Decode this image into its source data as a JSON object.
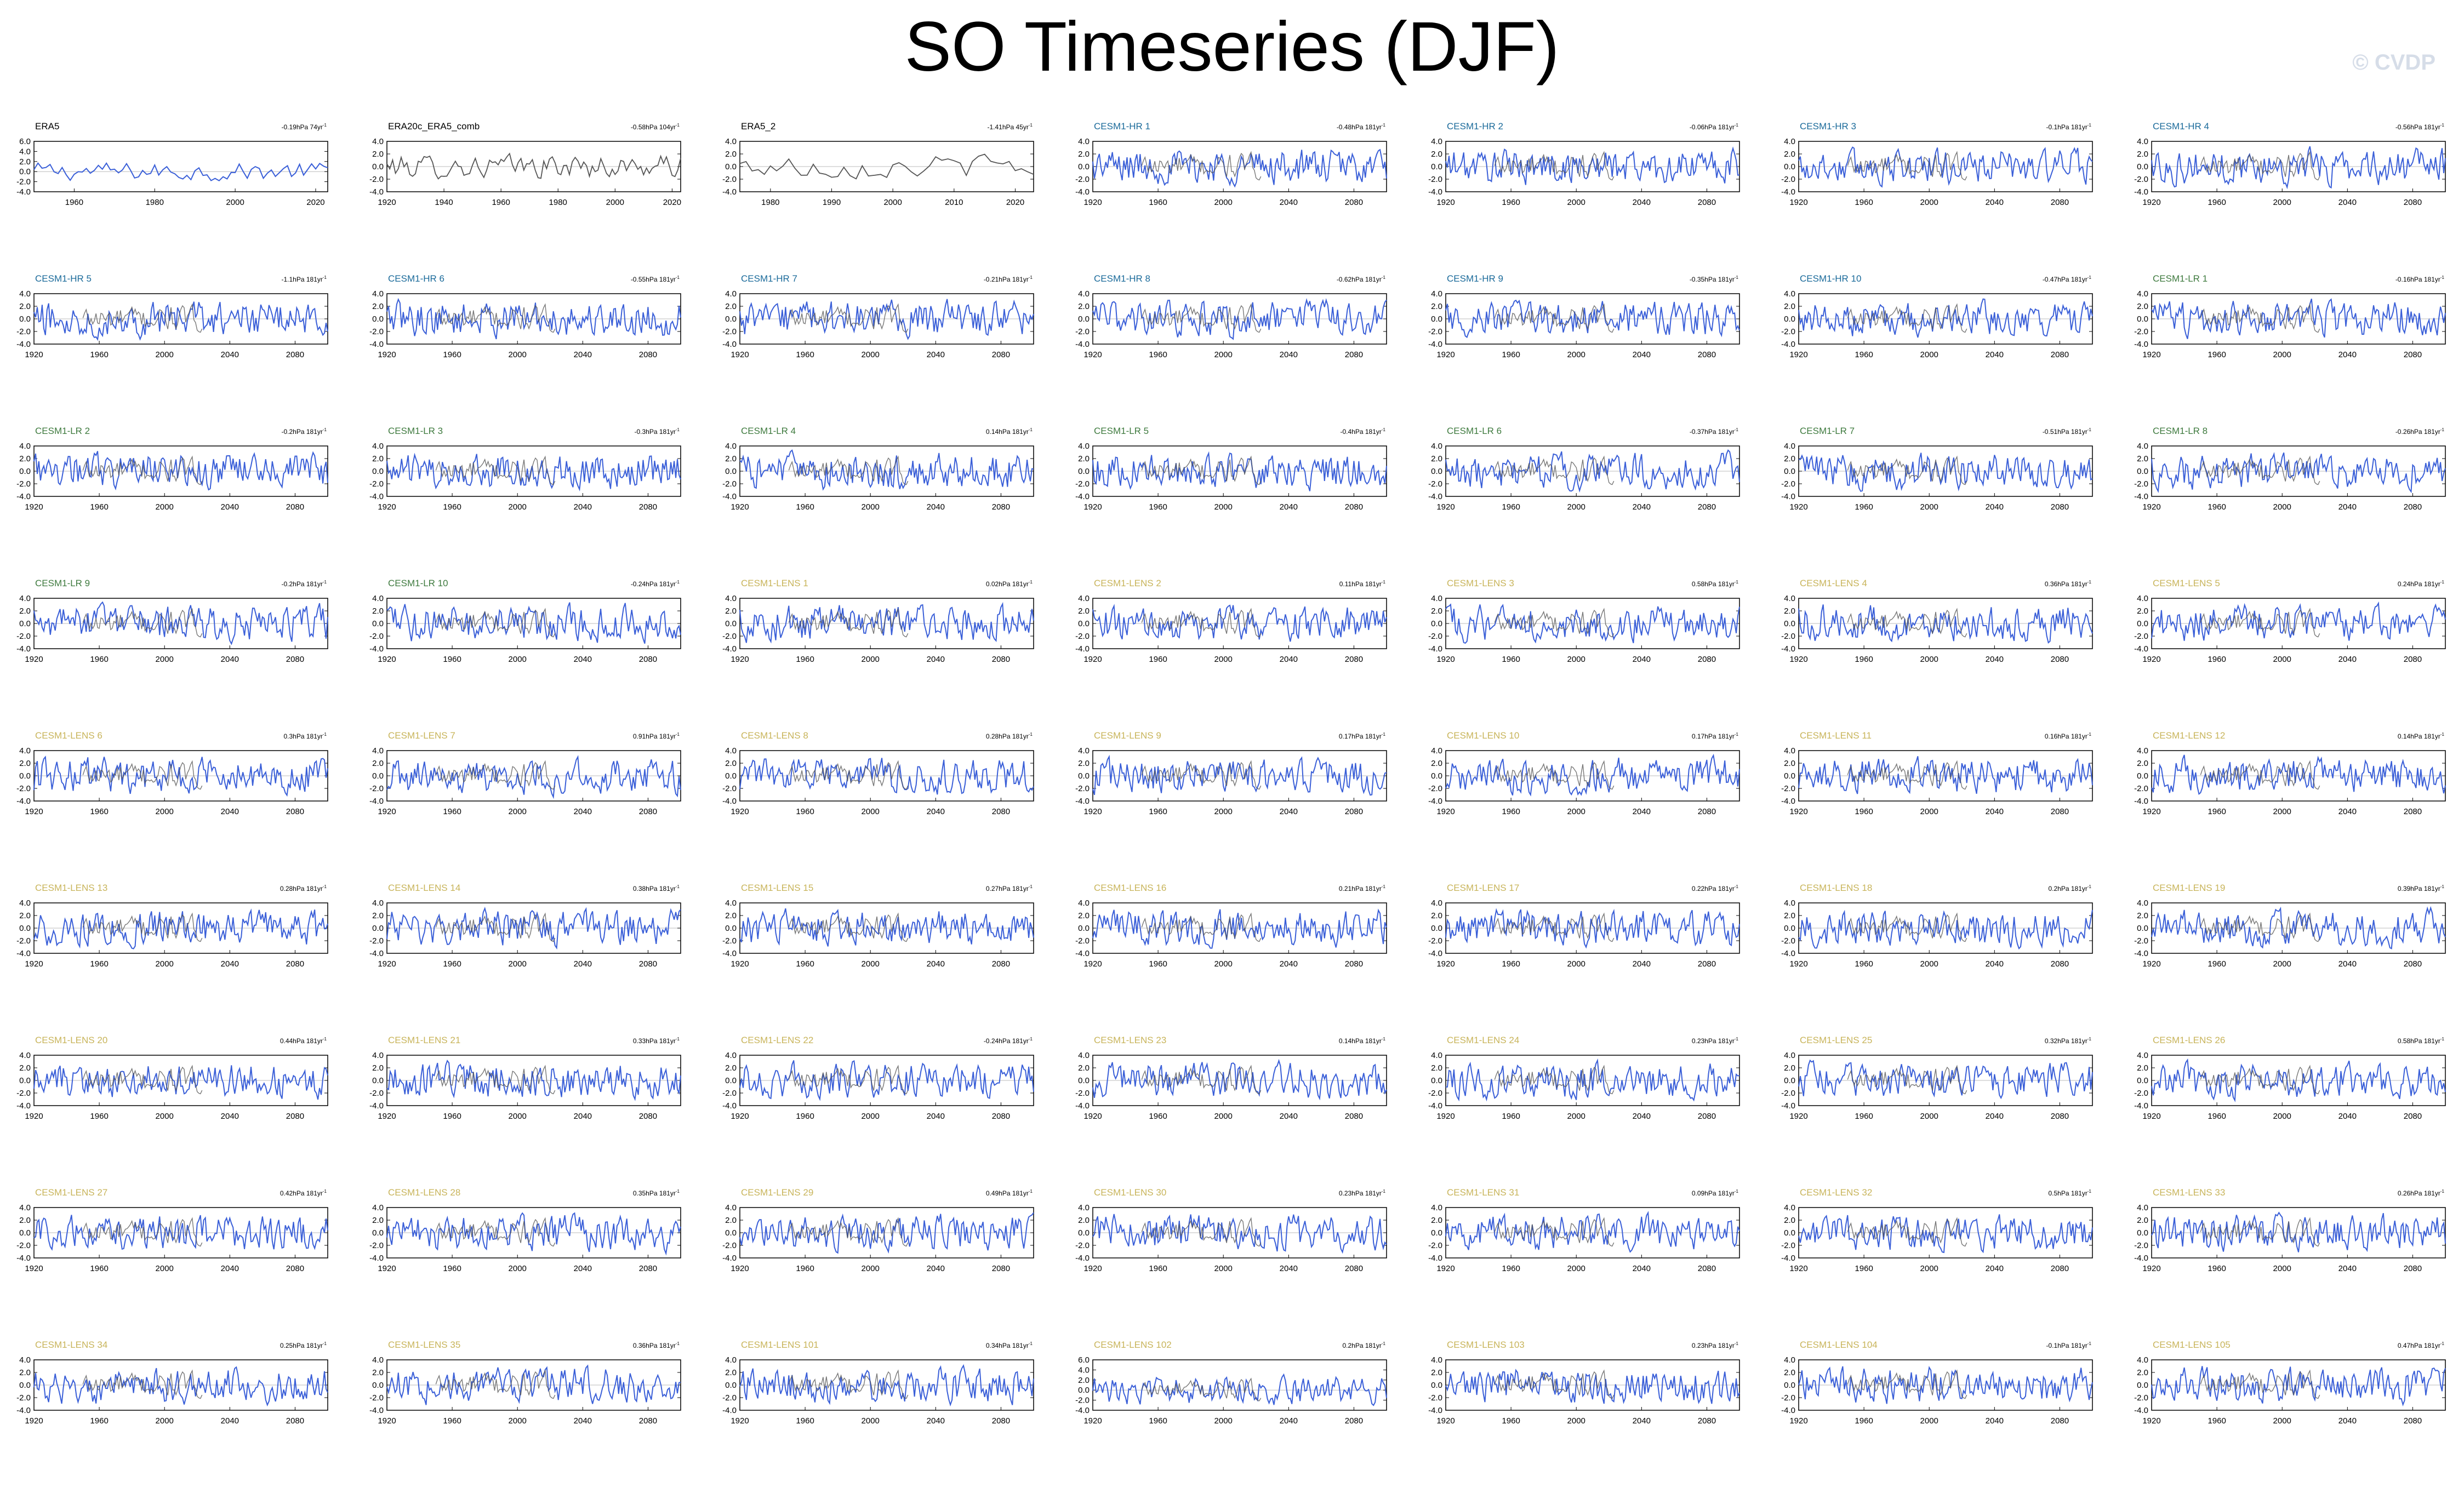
{
  "title": "SO Timeseries (DJF)",
  "watermark": "© CVDP",
  "colors": {
    "obs_line": "#000000",
    "model_line": "#3a5fd8",
    "obs_overlay": "#555555",
    "title_obs": "#000000",
    "title_hr": "#1a6a9a",
    "title_lr": "#3e7a3e",
    "title_lens": "#c8b45a"
  },
  "chart_data": {
    "type": "line",
    "layout": "7 columns x 9 rows small multiples",
    "ylabel": "",
    "xlabel": "",
    "default_ylim": [
      -4.0,
      4.0
    ],
    "default_yticks": [
      "4.0",
      "2.0",
      "0.0",
      "-2.0",
      "-4.0"
    ],
    "default_xlim": [
      1920,
      2100
    ],
    "default_xticks": [
      1920,
      1960,
      2000,
      2040,
      2080
    ],
    "panels": [
      {
        "name": "ERA5",
        "trend": "-0.19hPa 74yr",
        "group": "obs",
        "xlim": [
          1950,
          2023
        ],
        "xticks": [
          1960,
          1980,
          2000,
          2020
        ],
        "ylim": [
          -4.0,
          6.0
        ],
        "yticks": [
          "6.0",
          "4.0",
          "2.0",
          "0.0",
          "-2.0",
          "-4.0"
        ]
      },
      {
        "name": "ERA20c_ERA5_comb",
        "trend": "-0.58hPa 104yr",
        "group": "obs",
        "xlim": [
          1920,
          2023
        ],
        "xticks": [
          1920,
          1940,
          1960,
          1980,
          2000,
          2020
        ],
        "ylim": [
          -4.0,
          4.0
        ],
        "yticks": [
          "4.0",
          "2.0",
          "0.0",
          "-2.0",
          "-4.0"
        ]
      },
      {
        "name": "ERA5_2",
        "trend": "-1.41hPa 45yr",
        "group": "obs",
        "xlim": [
          1975,
          2023
        ],
        "xticks": [
          1980,
          1990,
          2000,
          2010,
          2020
        ],
        "ylim": [
          -4.0,
          4.0
        ],
        "yticks": [
          "4.0",
          "2.0",
          "0.0",
          "-2.0",
          "-4.0"
        ]
      },
      {
        "name": "CESM1-HR 1",
        "trend": "-0.48hPa 181yr",
        "group": "hr"
      },
      {
        "name": "CESM1-HR 2",
        "trend": "-0.06hPa 181yr",
        "group": "hr"
      },
      {
        "name": "CESM1-HR 3",
        "trend": "-0.1hPa 181yr",
        "group": "hr"
      },
      {
        "name": "CESM1-HR 4",
        "trend": "-0.56hPa 181yr",
        "group": "hr"
      },
      {
        "name": "CESM1-HR 5",
        "trend": "-1.1hPa 181yr",
        "group": "hr"
      },
      {
        "name": "CESM1-HR 6",
        "trend": "-0.55hPa 181yr",
        "group": "hr"
      },
      {
        "name": "CESM1-HR 7",
        "trend": "-0.21hPa 181yr",
        "group": "hr"
      },
      {
        "name": "CESM1-HR 8",
        "trend": "-0.62hPa 181yr",
        "group": "hr"
      },
      {
        "name": "CESM1-HR 9",
        "trend": "-0.35hPa 181yr",
        "group": "hr"
      },
      {
        "name": "CESM1-HR 10",
        "trend": "-0.47hPa 181yr",
        "group": "hr"
      },
      {
        "name": "CESM1-LR 1",
        "trend": "-0.16hPa 181yr",
        "group": "lr"
      },
      {
        "name": "CESM1-LR 2",
        "trend": "-0.2hPa 181yr",
        "group": "lr"
      },
      {
        "name": "CESM1-LR 3",
        "trend": "-0.3hPa 181yr",
        "group": "lr"
      },
      {
        "name": "CESM1-LR 4",
        "trend": "0.14hPa 181yr",
        "group": "lr"
      },
      {
        "name": "CESM1-LR 5",
        "trend": "-0.4hPa 181yr",
        "group": "lr"
      },
      {
        "name": "CESM1-LR 6",
        "trend": "-0.37hPa 181yr",
        "group": "lr"
      },
      {
        "name": "CESM1-LR 7",
        "trend": "-0.51hPa 181yr",
        "group": "lr"
      },
      {
        "name": "CESM1-LR 8",
        "trend": "-0.26hPa 181yr",
        "group": "lr"
      },
      {
        "name": "CESM1-LR 9",
        "trend": "-0.2hPa 181yr",
        "group": "lr"
      },
      {
        "name": "CESM1-LR 10",
        "trend": "-0.24hPa 181yr",
        "group": "lr"
      },
      {
        "name": "CESM1-LENS 1",
        "trend": "0.02hPa 181yr",
        "group": "lens"
      },
      {
        "name": "CESM1-LENS 2",
        "trend": "0.11hPa 181yr",
        "group": "lens"
      },
      {
        "name": "CESM1-LENS 3",
        "trend": "0.58hPa 181yr",
        "group": "lens"
      },
      {
        "name": "CESM1-LENS 4",
        "trend": "0.36hPa 181yr",
        "group": "lens"
      },
      {
        "name": "CESM1-LENS 5",
        "trend": "0.24hPa 181yr",
        "group": "lens"
      },
      {
        "name": "CESM1-LENS 6",
        "trend": "0.3hPa 181yr",
        "group": "lens"
      },
      {
        "name": "CESM1-LENS 7",
        "trend": "0.91hPa 181yr",
        "group": "lens"
      },
      {
        "name": "CESM1-LENS 8",
        "trend": "0.28hPa 181yr",
        "group": "lens"
      },
      {
        "name": "CESM1-LENS 9",
        "trend": "0.17hPa 181yr",
        "group": "lens"
      },
      {
        "name": "CESM1-LENS 10",
        "trend": "0.17hPa 181yr",
        "group": "lens"
      },
      {
        "name": "CESM1-LENS 11",
        "trend": "0.16hPa 181yr",
        "group": "lens"
      },
      {
        "name": "CESM1-LENS 12",
        "trend": "0.14hPa 181yr",
        "group": "lens"
      },
      {
        "name": "CESM1-LENS 13",
        "trend": "0.28hPa 181yr",
        "group": "lens"
      },
      {
        "name": "CESM1-LENS 14",
        "trend": "0.38hPa 181yr",
        "group": "lens"
      },
      {
        "name": "CESM1-LENS 15",
        "trend": "0.27hPa 181yr",
        "group": "lens"
      },
      {
        "name": "CESM1-LENS 16",
        "trend": "0.21hPa 181yr",
        "group": "lens"
      },
      {
        "name": "CESM1-LENS 17",
        "trend": "0.22hPa 181yr",
        "group": "lens"
      },
      {
        "name": "CESM1-LENS 18",
        "trend": "0.2hPa 181yr",
        "group": "lens"
      },
      {
        "name": "CESM1-LENS 19",
        "trend": "0.39hPa 181yr",
        "group": "lens"
      },
      {
        "name": "CESM1-LENS 20",
        "trend": "0.44hPa 181yr",
        "group": "lens"
      },
      {
        "name": "CESM1-LENS 21",
        "trend": "0.33hPa 181yr",
        "group": "lens"
      },
      {
        "name": "CESM1-LENS 22",
        "trend": "-0.24hPa 181yr",
        "group": "lens"
      },
      {
        "name": "CESM1-LENS 23",
        "trend": "0.14hPa 181yr",
        "group": "lens"
      },
      {
        "name": "CESM1-LENS 24",
        "trend": "0.23hPa 181yr",
        "group": "lens"
      },
      {
        "name": "CESM1-LENS 25",
        "trend": "0.32hPa 181yr",
        "group": "lens"
      },
      {
        "name": "CESM1-LENS 26",
        "trend": "0.58hPa 181yr",
        "group": "lens"
      },
      {
        "name": "CESM1-LENS 27",
        "trend": "0.42hPa 181yr",
        "group": "lens"
      },
      {
        "name": "CESM1-LENS 28",
        "trend": "0.35hPa 181yr",
        "group": "lens"
      },
      {
        "name": "CESM1-LENS 29",
        "trend": "0.49hPa 181yr",
        "group": "lens"
      },
      {
        "name": "CESM1-LENS 30",
        "trend": "0.23hPa 181yr",
        "group": "lens"
      },
      {
        "name": "CESM1-LENS 31",
        "trend": "0.09hPa 181yr",
        "group": "lens"
      },
      {
        "name": "CESM1-LENS 32",
        "trend": "0.5hPa 181yr",
        "group": "lens"
      },
      {
        "name": "CESM1-LENS 33",
        "trend": "0.26hPa 181yr",
        "group": "lens"
      },
      {
        "name": "CESM1-LENS 34",
        "trend": "0.25hPa 181yr",
        "group": "lens"
      },
      {
        "name": "CESM1-LENS 35",
        "trend": "0.36hPa 181yr",
        "group": "lens"
      },
      {
        "name": "CESM1-LENS 101",
        "trend": "0.34hPa 181yr",
        "group": "lens"
      },
      {
        "name": "CESM1-LENS 102",
        "trend": "0.2hPa 181yr",
        "group": "lens",
        "ylim": [
          -4.0,
          6.0
        ],
        "yticks": [
          "6.0",
          "4.0",
          "2.0",
          "0.0",
          "-2.0",
          "-4.0"
        ]
      },
      {
        "name": "CESM1-LENS 103",
        "trend": "0.23hPa 181yr",
        "group": "lens"
      },
      {
        "name": "CESM1-LENS 104",
        "trend": "-0.1hPa 181yr",
        "group": "lens"
      },
      {
        "name": "CESM1-LENS 105",
        "trend": "0.47hPa 181yr",
        "group": "lens"
      }
    ]
  }
}
